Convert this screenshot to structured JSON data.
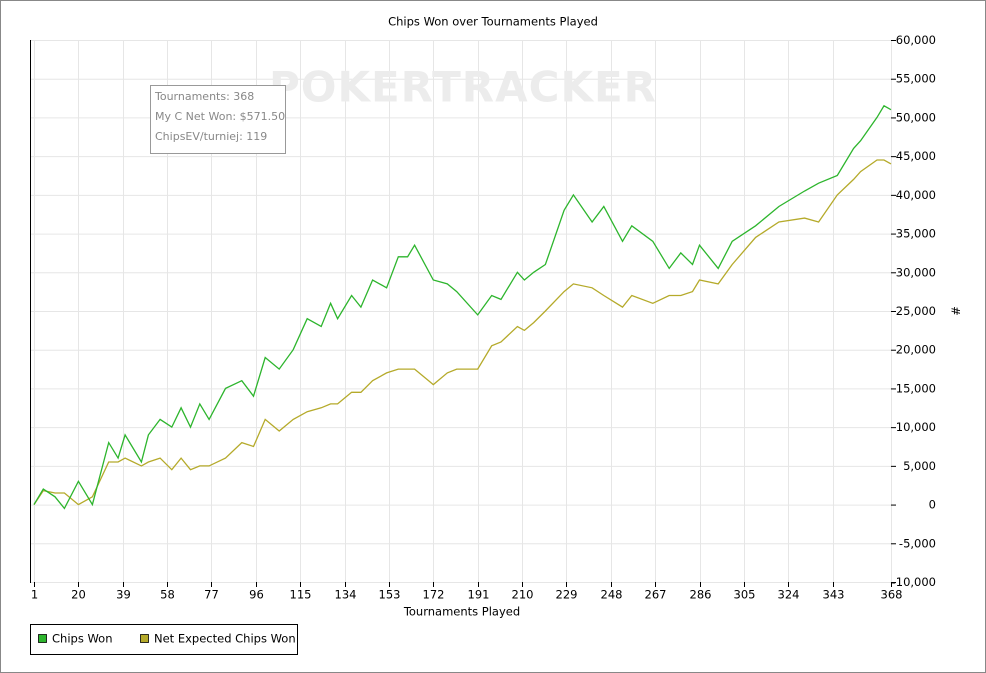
{
  "chart_data": {
    "type": "line",
    "title": "Chips Won over Tournaments Played",
    "xlabel": "Tournaments Played",
    "ylabel": "#",
    "watermark": "POKERTRACKER",
    "annotations": [
      "Tournaments: 368",
      "My C Net Won: $571.50",
      "ChipsEV/turniej: 119"
    ],
    "x": [
      1,
      5,
      10,
      14,
      20,
      26,
      33,
      37,
      40,
      47,
      50,
      55,
      60,
      64,
      68,
      72,
      76,
      83,
      90,
      95,
      100,
      106,
      112,
      118,
      124,
      128,
      131,
      137,
      141,
      146,
      152,
      157,
      161,
      164,
      172,
      178,
      182,
      191,
      197,
      201,
      208,
      211,
      215,
      220,
      228,
      232,
      240,
      245,
      253,
      257,
      266,
      273,
      278,
      283,
      286,
      294,
      300,
      310,
      320,
      331,
      337,
      345,
      352,
      355,
      362,
      365,
      368
    ],
    "series": [
      {
        "name": "Chips Won",
        "color": "#2db52d",
        "values": [
          0,
          2000,
          1000,
          -500,
          3000,
          0,
          8000,
          6000,
          9000,
          5500,
          9000,
          11000,
          10000,
          12500,
          10000,
          13000,
          11000,
          15000,
          16000,
          14000,
          19000,
          17500,
          20000,
          24000,
          23000,
          26000,
          24000,
          27000,
          25500,
          29000,
          28000,
          32000,
          32000,
          33500,
          29000,
          28500,
          27500,
          24500,
          27000,
          26500,
          30000,
          29000,
          30000,
          31000,
          38000,
          40000,
          36500,
          38500,
          34000,
          36000,
          34000,
          30500,
          32500,
          31000,
          33500,
          30500,
          34000,
          36000,
          38500,
          40500,
          41500,
          42500,
          46000,
          47000,
          50000,
          51500,
          51000
        ]
      },
      {
        "name": "Net Expected Chips Won",
        "color": "#b5aa2a",
        "values": [
          0,
          1800,
          1500,
          1500,
          0,
          1000,
          5500,
          5500,
          6000,
          5000,
          5500,
          6000,
          4500,
          6000,
          4500,
          5000,
          5000,
          6000,
          8000,
          7500,
          11000,
          9500,
          11000,
          12000,
          12500,
          13000,
          13000,
          14500,
          14500,
          16000,
          17000,
          17500,
          17500,
          17500,
          15500,
          17000,
          17500,
          17500,
          20500,
          21000,
          23000,
          22500,
          23500,
          25000,
          27500,
          28500,
          28000,
          27000,
          25500,
          27000,
          26000,
          27000,
          27000,
          27500,
          29000,
          28500,
          31000,
          34500,
          36500,
          37000,
          36500,
          40000,
          42000,
          43000,
          44500,
          44500,
          44000
        ]
      }
    ],
    "xlim": [
      1,
      368
    ],
    "xticks": [
      1,
      20,
      39,
      58,
      77,
      96,
      115,
      134,
      153,
      172,
      191,
      210,
      229,
      248,
      267,
      286,
      305,
      324,
      343,
      368
    ],
    "ylim": [
      -10000,
      60000
    ],
    "yticks": [
      {
        "value": -10000,
        "label": "-10,000"
      },
      {
        "value": -5000,
        "label": "-5,000"
      },
      0,
      {
        "value": 5000,
        "label": "5,000"
      },
      {
        "value": 10000,
        "label": "10,000"
      },
      {
        "value": 15000,
        "label": "15,000"
      },
      {
        "value": 20000,
        "label": "20,000"
      },
      {
        "value": 25000,
        "label": "25,000"
      },
      {
        "value": 30000,
        "label": "30,000"
      },
      {
        "value": 35000,
        "label": "35,000"
      },
      {
        "value": 40000,
        "label": "40,000"
      },
      {
        "value": 45000,
        "label": "45,000"
      },
      {
        "value": 50000,
        "label": "50,000"
      },
      {
        "value": 55000,
        "label": "55,000"
      },
      {
        "value": 60000,
        "label": "60,000"
      }
    ],
    "grid": true,
    "legend": "bottom-left"
  }
}
